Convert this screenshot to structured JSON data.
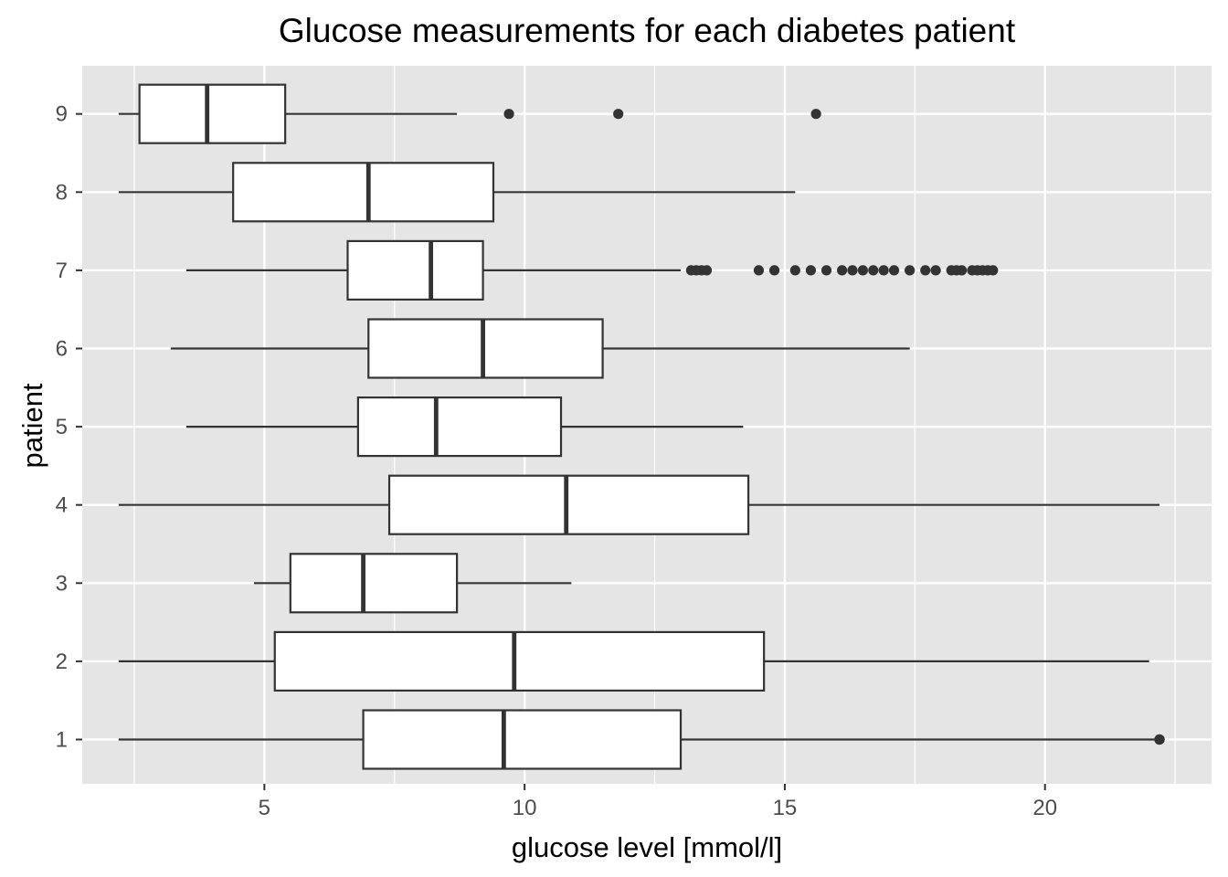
{
  "chart_data": {
    "type": "boxplot",
    "orientation": "horizontal",
    "title": "Glucose measurements for each diabetes patient",
    "xlabel": "glucose level [mmol/l]",
    "ylabel": "patient",
    "xlim": [
      1.5,
      23.2
    ],
    "xticks": [
      5,
      10,
      15,
      20
    ],
    "xtick_labels": [
      "5",
      "10",
      "15",
      "20"
    ],
    "categories": [
      "1",
      "2",
      "3",
      "4",
      "5",
      "6",
      "7",
      "8",
      "9"
    ],
    "grid": true,
    "legend": "none",
    "colors": {
      "panel": "#e5e5e5",
      "grid": "#ffffff",
      "box_fill": "#ffffff",
      "line": "#333333"
    },
    "boxes": [
      {
        "patient": "1",
        "whisker_low": 2.2,
        "q1": 6.9,
        "median": 9.6,
        "q3": 13.0,
        "whisker_high": 22.2,
        "outliers": [
          22.2,
          22.2,
          22.2
        ]
      },
      {
        "patient": "2",
        "whisker_low": 2.2,
        "q1": 5.2,
        "median": 9.8,
        "q3": 14.6,
        "whisker_high": 22.0,
        "outliers": []
      },
      {
        "patient": "3",
        "whisker_low": 4.8,
        "q1": 5.5,
        "median": 6.9,
        "q3": 8.7,
        "whisker_high": 10.9,
        "outliers": []
      },
      {
        "patient": "4",
        "whisker_low": 2.2,
        "q1": 7.4,
        "median": 10.8,
        "q3": 14.3,
        "whisker_high": 22.2,
        "outliers": []
      },
      {
        "patient": "5",
        "whisker_low": 3.5,
        "q1": 6.8,
        "median": 8.3,
        "q3": 10.7,
        "whisker_high": 14.2,
        "outliers": []
      },
      {
        "patient": "6",
        "whisker_low": 3.2,
        "q1": 7.0,
        "median": 9.2,
        "q3": 11.5,
        "whisker_high": 17.4,
        "outliers": []
      },
      {
        "patient": "7",
        "whisker_low": 3.5,
        "q1": 6.6,
        "median": 8.2,
        "q3": 9.2,
        "whisker_high": 13.0,
        "outliers": [
          13.2,
          13.3,
          13.4,
          13.5,
          14.5,
          14.8,
          15.2,
          15.5,
          15.8,
          16.1,
          16.3,
          16.5,
          16.7,
          16.9,
          17.1,
          17.4,
          17.7,
          17.9,
          18.2,
          18.3,
          18.4,
          18.6,
          18.7,
          18.8,
          18.9,
          19.0
        ]
      },
      {
        "patient": "8",
        "whisker_low": 2.2,
        "q1": 4.4,
        "median": 7.0,
        "q3": 9.4,
        "whisker_high": 15.2,
        "outliers": []
      },
      {
        "patient": "9",
        "whisker_low": 2.2,
        "q1": 2.6,
        "median": 3.9,
        "q3": 5.4,
        "whisker_high": 8.7,
        "outliers": [
          9.7,
          11.8,
          15.6
        ]
      }
    ]
  }
}
